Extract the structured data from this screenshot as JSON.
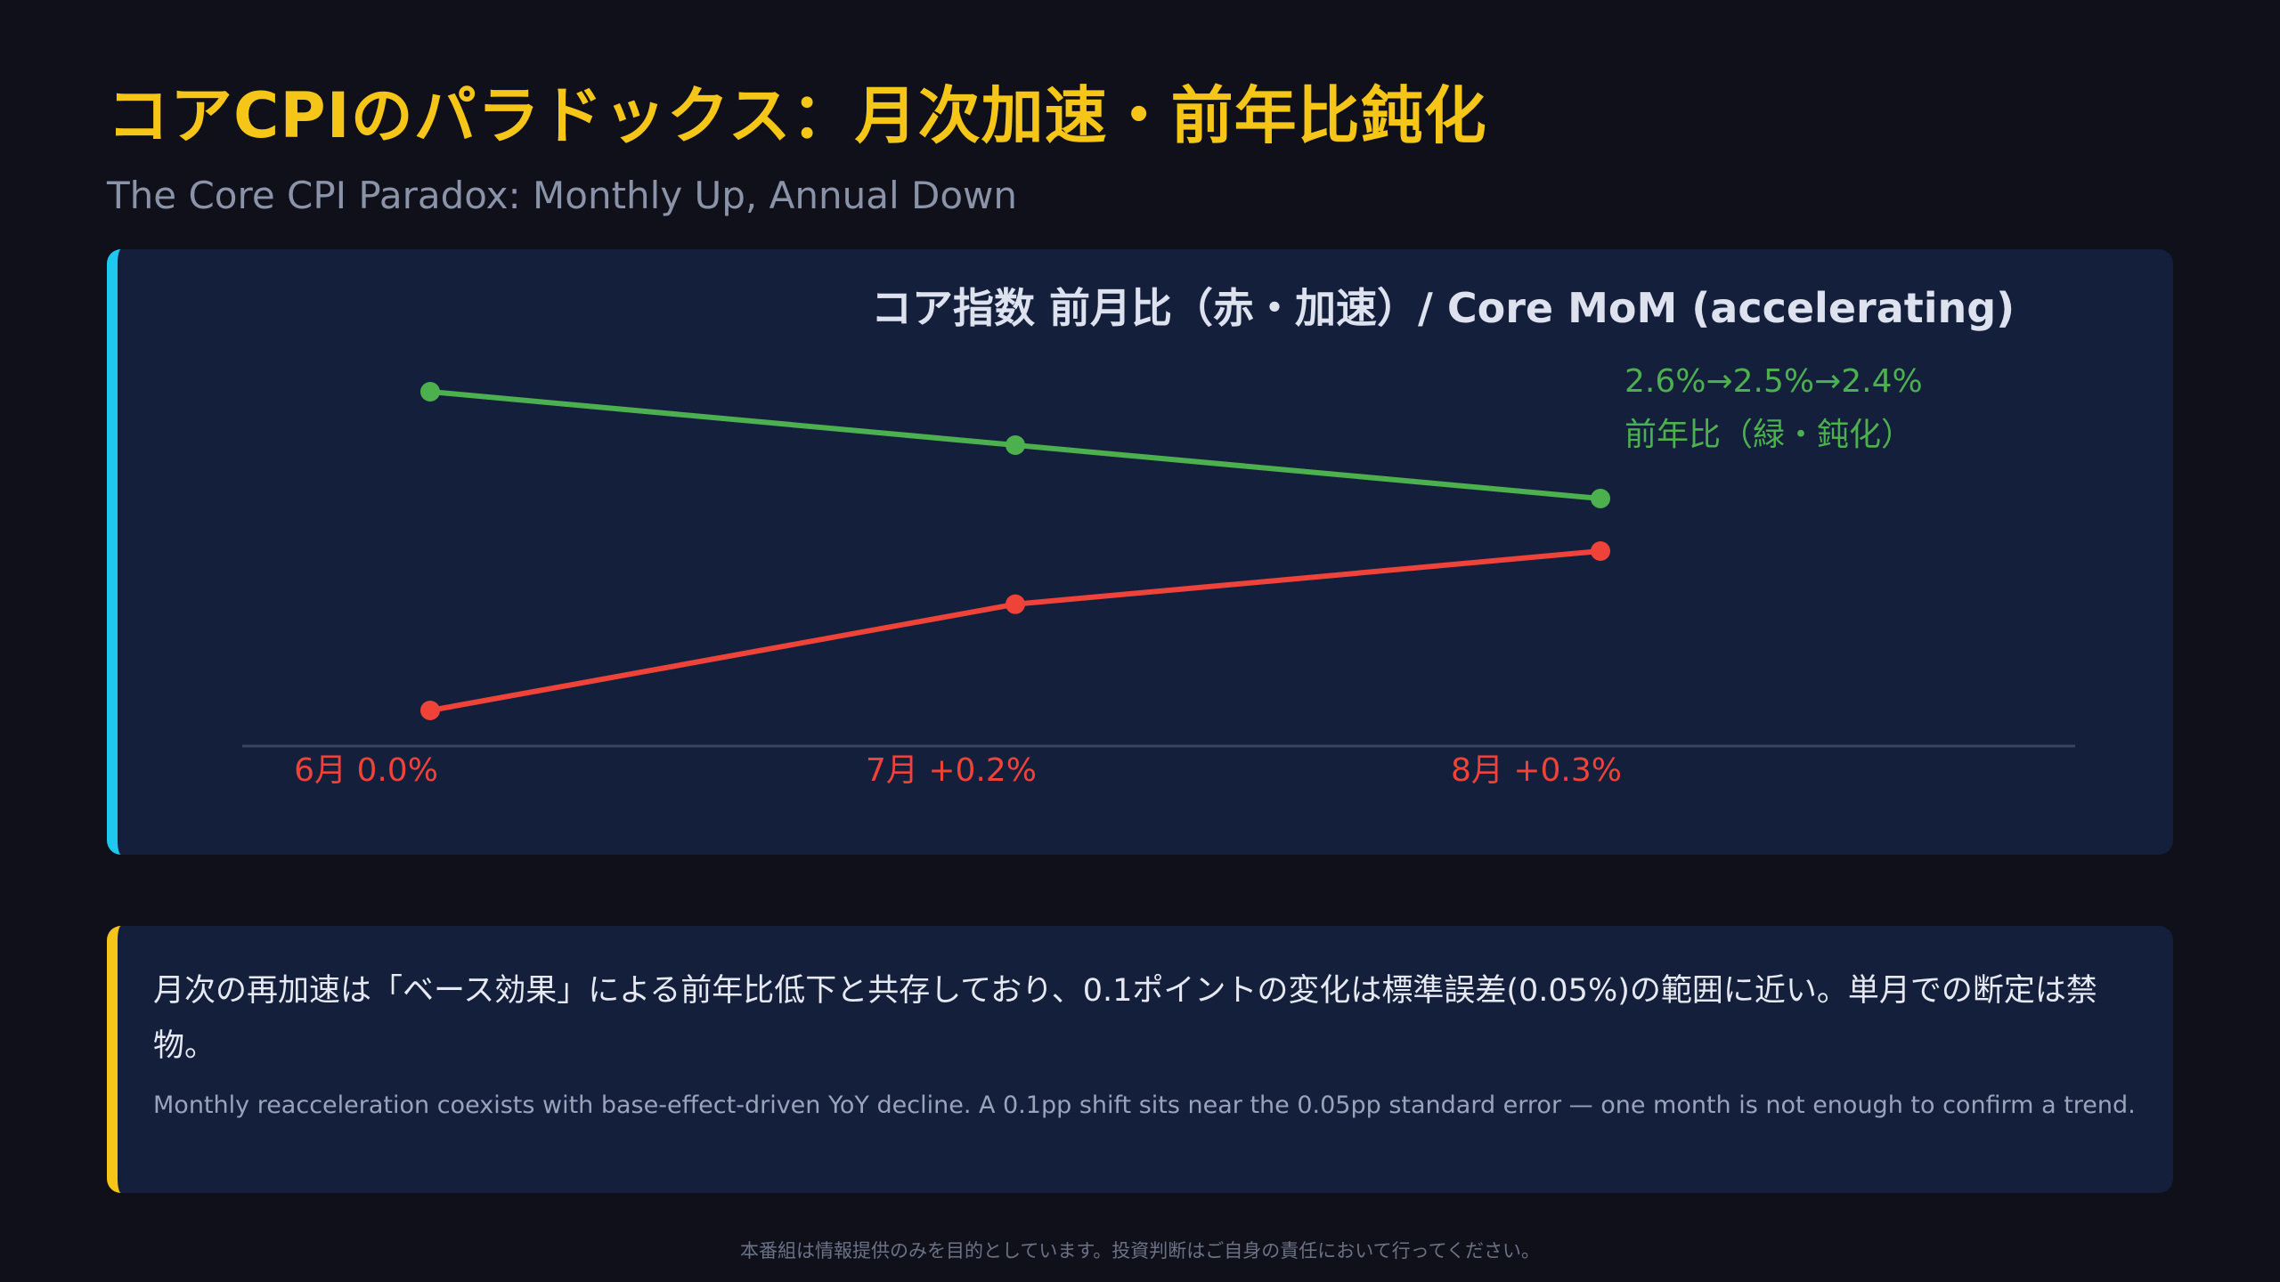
{
  "header": {
    "title": "コアCPIのパラドックス：月次加速・前年比鈍化",
    "subtitle": "The Core CPI Paradox: Monthly Up, Annual Down"
  },
  "chart_data": {
    "type": "line",
    "title": "コア指数 前月比（赤・加速）/ Core MoM (accelerating)",
    "categories": [
      "6月",
      "7月",
      "8月"
    ],
    "tick_labels": [
      "6月 0.0%",
      "7月 +0.2%",
      "8月 +0.3%"
    ],
    "yoy_label_values": "2.6%→2.5%→2.4%",
    "yoy_label_name": "前年比（緑・鈍化）",
    "series": [
      {
        "values": [
          0.0,
          0.2,
          0.3
        ],
        "color": "#ef4238"
      },
      {
        "values": [
          2.6,
          2.5,
          2.4
        ],
        "color": "#4cb04e"
      }
    ],
    "grid": false,
    "colors": {
      "axis": "#3a4360",
      "accent_border": "#1ec8ee"
    }
  },
  "note": {
    "text_jp": "月次の再加速は「ベース効果」による前年比低下と共存しており、0.1ポイントの変化は標準誤差(0.05%)の範囲に近い。単月での断定は禁物。",
    "text_en": "Monthly reacceleration coexists with base-effect-driven YoY decline. A 0.1pp shift sits near the 0.05pp standard error — one month is not enough to confirm a trend.",
    "accent_color": "#f5c518"
  },
  "footer": {
    "disclaimer": "本番組は情報提供のみを目的としています。投資判断はご自身の責任において行ってください。"
  }
}
